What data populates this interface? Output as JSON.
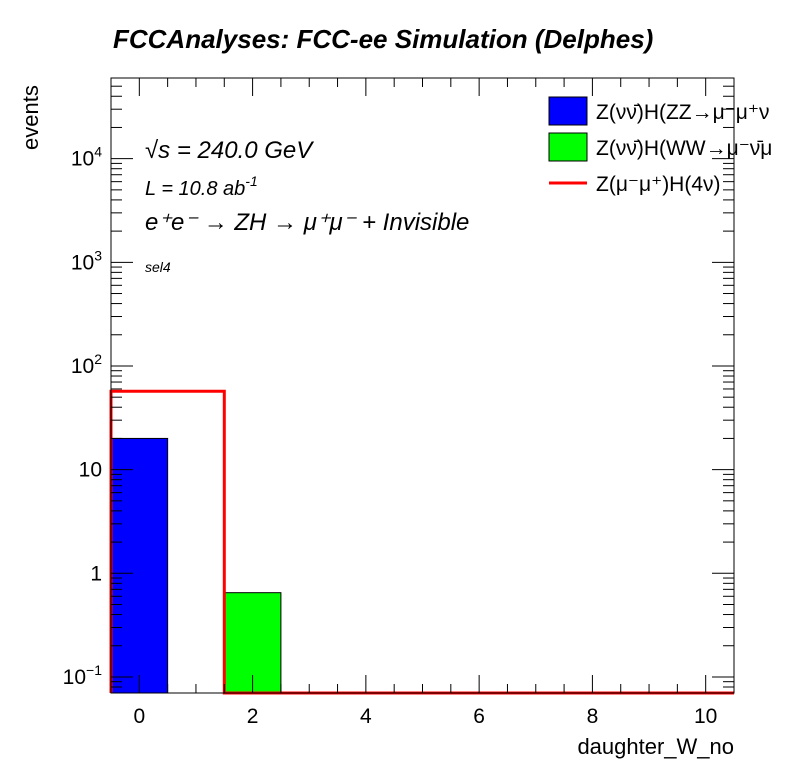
{
  "chart_data": {
    "type": "bar",
    "title": "FCCAnalyses: FCC-ee Simulation (Delphes)",
    "xlabel": "daughter_W_no",
    "ylabel": "events",
    "yscale": "log",
    "xlim": [
      -0.5,
      10.5
    ],
    "ylim": [
      0.07,
      60000
    ],
    "x_ticks": [
      "0",
      "2",
      "4",
      "6",
      "8",
      "10"
    ],
    "y_ticks": [
      {
        "value": 0.1,
        "base": "10",
        "sup": "−1"
      },
      {
        "value": 1,
        "base": "1",
        "sup": ""
      },
      {
        "value": 10,
        "base": "10",
        "sup": ""
      },
      {
        "value": 100,
        "base": "10",
        "sup": "2"
      },
      {
        "value": 1000,
        "base": "10",
        "sup": "3"
      },
      {
        "value": 10000,
        "base": "10",
        "sup": "4"
      }
    ],
    "grid": false,
    "legend_position": "top-right",
    "bin_width": 1,
    "series": [
      {
        "name": "Z(νν̄)H(ZZ→μ⁻μ⁺ν",
        "style": "fill",
        "color": "#0000ff",
        "bins": [
          {
            "x": 0,
            "y": 20
          },
          {
            "x": 2,
            "y": 0
          }
        ]
      },
      {
        "name": "Z(νν̄)H(WW→μ⁻ν̄μ",
        "style": "fill",
        "color": "#00ff00",
        "bins": [
          {
            "x": 0,
            "y": 0
          },
          {
            "x": 2,
            "y": 0.65
          }
        ]
      },
      {
        "name": "Z(μ⁻μ⁺)H(4ν)",
        "style": "line",
        "color": "#ff0000",
        "bins": [
          {
            "x": 0,
            "y": 57
          },
          {
            "x": 2,
            "y": 0
          }
        ]
      }
    ],
    "annotations": {
      "sqrt_s_prefix": "√s",
      "sqrt_s_rest": " = 240.0 GeV",
      "lumi_main": "L = 10.8 ab",
      "lumi_sup": "-1",
      "process": "e⁺e⁻ → ZH → μ⁺μ⁻ + Invisible",
      "selection": "sel4"
    }
  }
}
